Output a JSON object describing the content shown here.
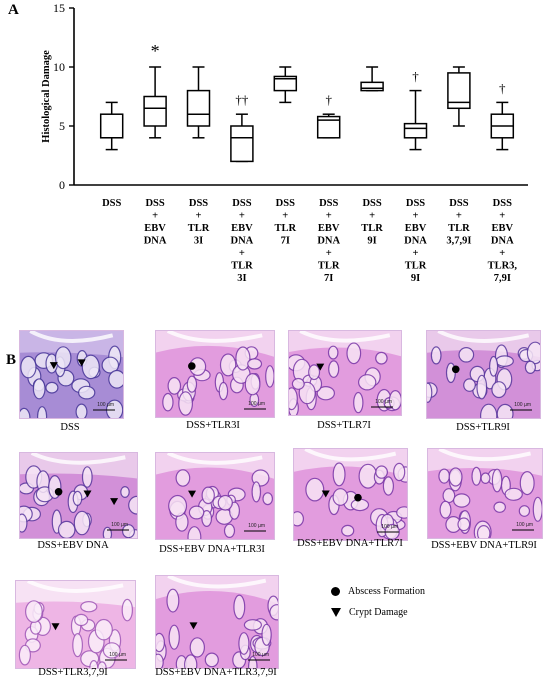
{
  "panel_a_label": "A",
  "panel_b_label": "B",
  "chart_data": {
    "type": "boxplot",
    "ylabel": "Histological Damage",
    "ylim": [
      0,
      15
    ],
    "yticks": [
      0,
      5,
      10,
      15
    ],
    "groups": [
      {
        "label": [
          "DSS"
        ],
        "min": 3,
        "q1": 4,
        "median": 4,
        "q3": 6,
        "max": 7,
        "mark": ""
      },
      {
        "label": [
          "DSS",
          "+",
          "EBV",
          "DNA"
        ],
        "min": 4,
        "q1": 5,
        "median": 6.5,
        "q3": 7.5,
        "max": 10,
        "mark": "*"
      },
      {
        "label": [
          "DSS",
          "+",
          "TLR",
          "3I"
        ],
        "min": 4,
        "q1": 5,
        "median": 6,
        "q3": 8,
        "max": 10,
        "mark": ""
      },
      {
        "label": [
          "DSS",
          "+",
          "EBV",
          "DNA",
          "+",
          "TLR",
          "3I"
        ],
        "min": 2,
        "q1": 2,
        "median": 4,
        "q3": 5,
        "max": 6,
        "mark": "††"
      },
      {
        "label": [
          "DSS",
          "+",
          "TLR",
          "7I"
        ],
        "min": 7,
        "q1": 8,
        "median": 9,
        "q3": 9.2,
        "max": 10,
        "mark": ""
      },
      {
        "label": [
          "DSS",
          "+",
          "EBV",
          "DNA",
          "+",
          "TLR",
          "7I"
        ],
        "min": 4,
        "q1": 4,
        "median": 5.5,
        "q3": 5.8,
        "max": 6,
        "mark": "†"
      },
      {
        "label": [
          "DSS",
          "+",
          "TLR",
          "9I"
        ],
        "min": 8,
        "q1": 8,
        "median": 8.2,
        "q3": 8.7,
        "max": 10,
        "mark": ""
      },
      {
        "label": [
          "DSS",
          "+",
          "EBV",
          "DNA",
          "+",
          "TLR",
          "9I"
        ],
        "min": 3,
        "q1": 4,
        "median": 4.8,
        "q3": 5.2,
        "max": 8,
        "mark": "†"
      },
      {
        "label": [
          "DSS",
          "+",
          "TLR",
          "3,7,9I"
        ],
        "min": 5,
        "q1": 6.5,
        "median": 7,
        "q3": 9.5,
        "max": 10,
        "mark": ""
      },
      {
        "label": [
          "DSS",
          "+",
          "EBV",
          "DNA",
          "+",
          "TLR3,",
          "7,9I"
        ],
        "min": 3,
        "q1": 4,
        "median": 5,
        "q3": 6,
        "max": 7,
        "mark": "†"
      }
    ]
  },
  "micrographs": [
    {
      "caption": "DSS",
      "palette": "purple",
      "markers": [
        "triangle",
        "triangle"
      ],
      "scalebar": "100 µm"
    },
    {
      "caption": "DSS+TLR3I",
      "palette": "pink",
      "markers": [
        "dot"
      ],
      "scalebar": "100 µm"
    },
    {
      "caption": "DSS+TLR7I",
      "palette": "pink",
      "markers": [
        "triangle"
      ],
      "scalebar": "100 µm"
    },
    {
      "caption": "DSS+TLR9I",
      "palette": "mixed",
      "markers": [
        "dot"
      ],
      "scalebar": "100 µm"
    },
    {
      "caption": "DSS+EBV DNA",
      "palette": "mixed",
      "markers": [
        "dot",
        "triangle",
        "triangle"
      ],
      "scalebar": "100 µm"
    },
    {
      "caption": "DSS+EBV DNA+TLR3I",
      "palette": "pink",
      "markers": [
        "triangle"
      ],
      "scalebar": "100 µm"
    },
    {
      "caption": "DSS+EBV DNA+TLR7I",
      "palette": "pink",
      "markers": [
        "triangle",
        "dot"
      ],
      "scalebar": "100 µm"
    },
    {
      "caption": "DSS+EBV DNA+TLR9I",
      "palette": "pink",
      "markers": [],
      "scalebar": "100 µm"
    },
    {
      "caption": "DSS+TLR3,7,9I",
      "palette": "light",
      "markers": [
        "triangle"
      ],
      "scalebar": "100 µm"
    },
    {
      "caption": "DSS+EBV DNA+TLR3,7,9I",
      "palette": "pink",
      "markers": [
        "triangle"
      ],
      "scalebar": "100 µm"
    }
  ],
  "legend": [
    {
      "marker": "dot",
      "text": "Abscess Formation"
    },
    {
      "marker": "triangle",
      "text": "Crypt Damage"
    }
  ]
}
